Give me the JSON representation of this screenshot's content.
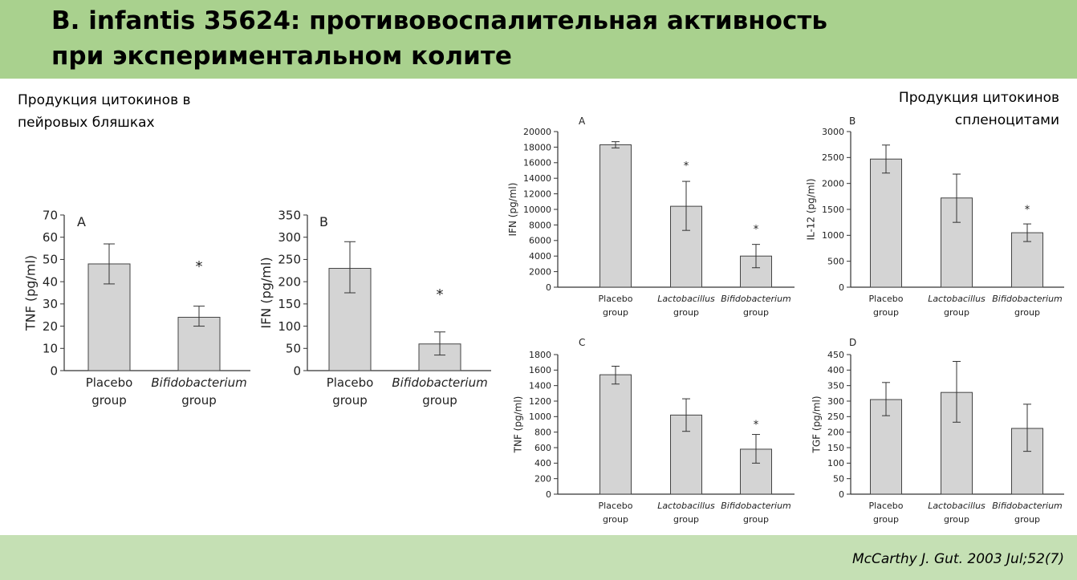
{
  "slide": {
    "title_line1": "B. infantis 35624: противовоспалительная активность",
    "title_line2": "при экспериментальном колите",
    "caption_left_line1": "Продукция цитокинов в",
    "caption_left_line2": "пейровых бляшках",
    "caption_right_line1": "Продукция цитокинов",
    "caption_right_line2": "спленоцитами",
    "citation": "McCarthy J. Gut. 2003 Jul;52(7)"
  },
  "colors": {
    "header_bg": "#a9d18e",
    "footer_bg": "#c5e0b4",
    "bar_fill": "#d4d4d4",
    "bar_stroke": "#444444"
  },
  "chart_data": [
    {
      "id": "pp-a",
      "panel": "A",
      "type": "bar",
      "ylabel": "TNF (pg/ml)",
      "ylim": [
        0,
        70
      ],
      "yticks": [
        0,
        10,
        20,
        30,
        40,
        50,
        60,
        70
      ],
      "categories": [
        [
          "Placebo",
          "group"
        ],
        [
          "Bifidobacterium",
          "group"
        ]
      ],
      "italic": [
        false,
        true
      ],
      "values": [
        48,
        24
      ],
      "err_low": [
        39,
        20
      ],
      "err_high": [
        57,
        29
      ],
      "significance": [
        "",
        "*"
      ],
      "sig_y": [
        null,
        47
      ]
    },
    {
      "id": "pp-b",
      "panel": "B",
      "type": "bar",
      "ylabel": "IFN (pg/ml)",
      "ylim": [
        0,
        350
      ],
      "yticks": [
        0,
        50,
        100,
        150,
        200,
        250,
        300,
        350
      ],
      "categories": [
        [
          "Placebo",
          "group"
        ],
        [
          "Bifidobacterium",
          "group"
        ]
      ],
      "italic": [
        false,
        true
      ],
      "values": [
        230,
        60
      ],
      "err_low": [
        175,
        35
      ],
      "err_high": [
        290,
        87
      ],
      "significance": [
        "",
        "*"
      ],
      "sig_y": [
        null,
        172
      ]
    },
    {
      "id": "sp-a",
      "panel": "A",
      "type": "bar",
      "ylabel": "IFN (pg/ml)",
      "ylim": [
        0,
        20000
      ],
      "yticks": [
        0,
        2000,
        4000,
        6000,
        8000,
        10000,
        12000,
        14000,
        16000,
        18000,
        20000
      ],
      "categories": [
        [
          "Placebo",
          "group"
        ],
        [
          "Lactobacillus",
          "group"
        ],
        [
          "Bifidobacterium",
          "group"
        ]
      ],
      "italic": [
        false,
        true,
        true
      ],
      "values": [
        18300,
        10400,
        4000
      ],
      "err_low": [
        17900,
        7300,
        2500
      ],
      "err_high": [
        18700,
        13600,
        5500
      ],
      "significance": [
        "",
        "*",
        "*"
      ],
      "sig_y": [
        null,
        15600,
        7500
      ]
    },
    {
      "id": "sp-b",
      "panel": "B",
      "type": "bar",
      "ylabel": "IL-12 (pg/ml)",
      "ylim": [
        0,
        3000
      ],
      "yticks": [
        0,
        500,
        1000,
        1500,
        2000,
        2500,
        3000
      ],
      "categories": [
        [
          "Placebo",
          "group"
        ],
        [
          "Lactobacillus",
          "group"
        ],
        [
          "Bifidobacterium",
          "group"
        ]
      ],
      "italic": [
        false,
        true,
        true
      ],
      "values": [
        2470,
        1720,
        1050
      ],
      "err_low": [
        2200,
        1250,
        880
      ],
      "err_high": [
        2740,
        2180,
        1220
      ],
      "significance": [
        "",
        "",
        "*"
      ],
      "sig_y": [
        null,
        null,
        1500
      ]
    },
    {
      "id": "sp-c",
      "panel": "C",
      "type": "bar",
      "ylabel": "TNF (pg/ml)",
      "ylim": [
        0,
        1800
      ],
      "yticks": [
        0,
        200,
        400,
        600,
        800,
        1000,
        1200,
        1400,
        1600,
        1800
      ],
      "categories": [
        [
          "Placebo",
          "group"
        ],
        [
          "Lactobacillus",
          "group"
        ],
        [
          "Bifidobacterium",
          "group"
        ]
      ],
      "italic": [
        false,
        true,
        true
      ],
      "values": [
        1540,
        1020,
        580
      ],
      "err_low": [
        1420,
        810,
        400
      ],
      "err_high": [
        1650,
        1230,
        770
      ],
      "significance": [
        "",
        "",
        "*"
      ],
      "sig_y": [
        null,
        null,
        900
      ]
    },
    {
      "id": "sp-d",
      "panel": "D",
      "type": "bar",
      "ylabel": "TGF (pg/ml)",
      "ylim": [
        0,
        450
      ],
      "yticks": [
        0,
        50,
        100,
        150,
        200,
        250,
        300,
        350,
        400,
        450
      ],
      "categories": [
        [
          "Placebo",
          "group"
        ],
        [
          "Lactobacillus",
          "group"
        ],
        [
          "Bifidobacterium",
          "group"
        ]
      ],
      "italic": [
        false,
        true,
        true
      ],
      "values": [
        305,
        328,
        212
      ],
      "err_low": [
        253,
        232,
        138
      ],
      "err_high": [
        360,
        428,
        290
      ],
      "significance": [
        "",
        "",
        ""
      ],
      "sig_y": [
        null,
        null,
        null
      ]
    }
  ]
}
